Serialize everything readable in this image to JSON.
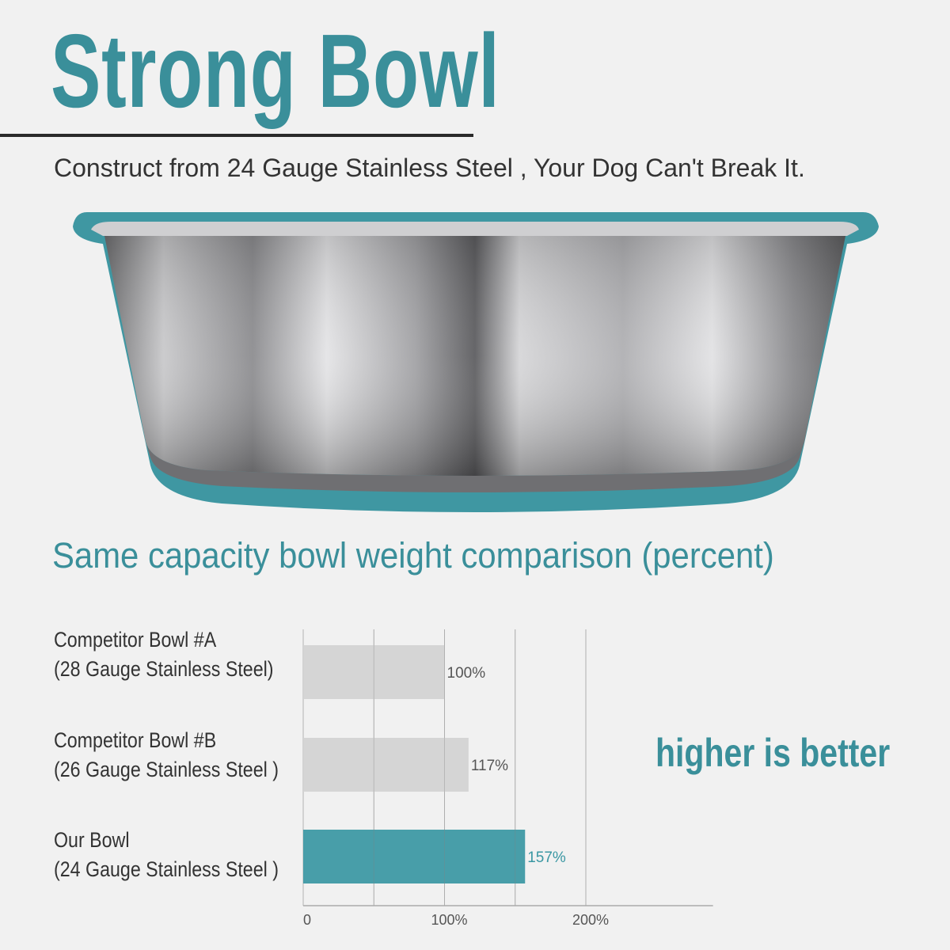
{
  "title": "Strong Bowl",
  "subtitle": "Construct from 24 Gauge Stainless Steel , Your Dog Can't Break It.",
  "colors": {
    "accent": "#3a97a3",
    "competitor_bar": "#d2d2d2",
    "text": "#333333",
    "background": "#f1f1f1"
  },
  "note": "higher is better",
  "chart_data": {
    "type": "bar",
    "orientation": "horizontal",
    "title": "Same capacity bowl weight comparison (percent)",
    "categories": [
      {
        "line1": "Competitor Bowl #A",
        "line2": "(28 Gauge Stainless Steel)"
      },
      {
        "line1": "Competitor Bowl #B",
        "line2": "(26 Gauge Stainless Steel )"
      },
      {
        "line1": "Our Bowl",
        "line2": "(24 Gauge Stainless Steel )"
      }
    ],
    "values": [
      100,
      117,
      157
    ],
    "data_labels": [
      "100%",
      "117%",
      "157%"
    ],
    "xlim": [
      0,
      290
    ],
    "x_ticks": [
      0,
      100,
      200
    ],
    "x_tick_labels": [
      "0",
      "100%",
      "200%"
    ],
    "gridlines": [
      50,
      100,
      150,
      200
    ],
    "grid": true,
    "unit": "percent"
  }
}
